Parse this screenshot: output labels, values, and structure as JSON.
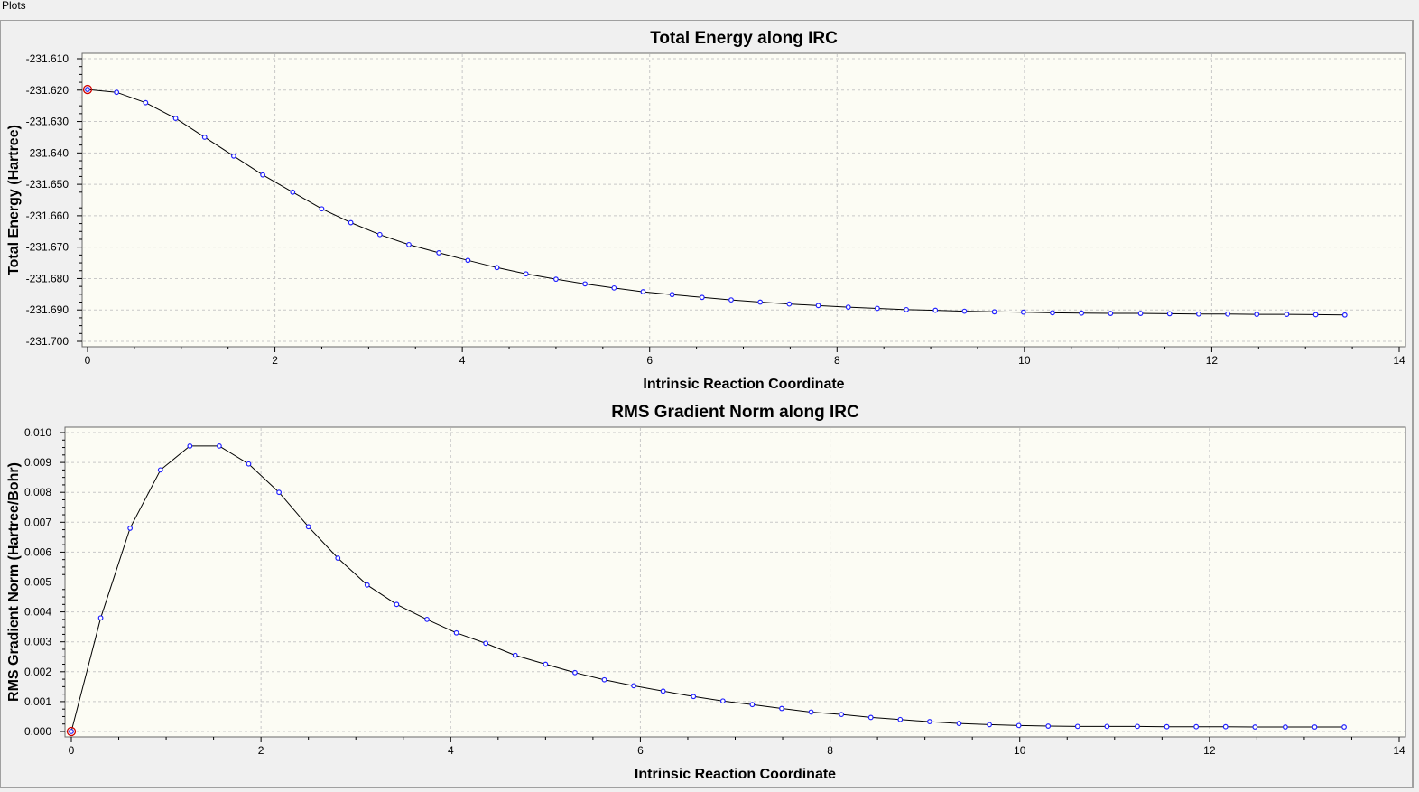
{
  "window": {
    "label": "Plots"
  },
  "chart_data": [
    {
      "type": "line",
      "title": "Total Energy along IRC",
      "xlabel": "Intrinsic Reaction Coordinate",
      "ylabel": "Total Energy (Hartree)",
      "xlim": [
        0,
        14
      ],
      "ylim": [
        -231.7,
        -231.61
      ],
      "xticks": [
        0,
        2,
        4,
        6,
        8,
        10,
        12,
        14
      ],
      "yticks": [
        -231.61,
        -231.62,
        -231.63,
        -231.64,
        -231.65,
        -231.66,
        -231.67,
        -231.68,
        -231.69,
        -231.7
      ],
      "ytick_labels": [
        "-231.610",
        "-231.620",
        "-231.630",
        "-231.640",
        "-231.650",
        "-231.660",
        "-231.670",
        "-231.680",
        "-231.690",
        "-231.700"
      ],
      "grid": true,
      "highlighted_point_index": 0,
      "x": [
        0,
        0.31,
        0.62,
        0.94,
        1.25,
        1.56,
        1.87,
        2.19,
        2.5,
        2.81,
        3.12,
        3.43,
        3.75,
        4.06,
        4.37,
        4.68,
        5.0,
        5.31,
        5.62,
        5.93,
        6.24,
        6.56,
        6.87,
        7.18,
        7.49,
        7.8,
        8.12,
        8.43,
        8.74,
        9.05,
        9.36,
        9.68,
        9.99,
        10.3,
        10.61,
        10.92,
        11.24,
        11.55,
        11.86,
        12.17,
        12.48,
        12.8,
        13.11,
        13.42
      ],
      "y": [
        -231.6198,
        -231.6207,
        -231.624,
        -231.629,
        -231.635,
        -231.641,
        -231.647,
        -231.6525,
        -231.6578,
        -231.6622,
        -231.666,
        -231.6692,
        -231.6718,
        -231.6742,
        -231.6765,
        -231.6785,
        -231.6802,
        -231.6817,
        -231.683,
        -231.6842,
        -231.6851,
        -231.686,
        -231.6868,
        -231.6875,
        -231.6881,
        -231.6886,
        -231.6891,
        -231.6895,
        -231.6899,
        -231.6901,
        -231.6904,
        -231.6906,
        -231.6907,
        -231.6909,
        -231.691,
        -231.6911,
        -231.6911,
        -231.6912,
        -231.6913,
        -231.6913,
        -231.6914,
        -231.6914,
        -231.6915,
        -231.6916
      ]
    },
    {
      "type": "line",
      "title": "RMS Gradient Norm along IRC",
      "xlabel": "Intrinsic Reaction Coordinate",
      "ylabel": "RMS Gradient Norm (Hartree/Bohr)",
      "xlim": [
        0,
        14
      ],
      "ylim": [
        0,
        0.01
      ],
      "xticks": [
        0,
        2,
        4,
        6,
        8,
        10,
        12,
        14
      ],
      "yticks": [
        0.0,
        0.001,
        0.002,
        0.003,
        0.004,
        0.005,
        0.006,
        0.007,
        0.008,
        0.009,
        0.01
      ],
      "ytick_labels": [
        "0.000",
        "0.001",
        "0.002",
        "0.003",
        "0.004",
        "0.005",
        "0.006",
        "0.007",
        "0.008",
        "0.009",
        "0.010"
      ],
      "grid": true,
      "highlighted_point_index": 0,
      "x": [
        0,
        0.31,
        0.62,
        0.94,
        1.25,
        1.56,
        1.87,
        2.19,
        2.5,
        2.81,
        3.12,
        3.43,
        3.75,
        4.06,
        4.37,
        4.68,
        5.0,
        5.31,
        5.62,
        5.93,
        6.24,
        6.56,
        6.87,
        7.18,
        7.49,
        7.8,
        8.12,
        8.43,
        8.74,
        9.05,
        9.36,
        9.68,
        9.99,
        10.3,
        10.61,
        10.92,
        11.24,
        11.55,
        11.86,
        12.17,
        12.48,
        12.8,
        13.11,
        13.42
      ],
      "y": [
        0.0,
        0.0038,
        0.0068,
        0.00875,
        0.00955,
        0.00955,
        0.00895,
        0.008,
        0.00685,
        0.0058,
        0.0049,
        0.00425,
        0.00375,
        0.0033,
        0.00295,
        0.00255,
        0.00225,
        0.00197,
        0.00173,
        0.00153,
        0.00135,
        0.00117,
        0.00102,
        0.0009,
        0.00077,
        0.00065,
        0.00057,
        0.00047,
        0.0004,
        0.00033,
        0.00027,
        0.00023,
        0.0002,
        0.00018,
        0.00017,
        0.00017,
        0.00017,
        0.00016,
        0.00016,
        0.00016,
        0.00015,
        0.00015,
        0.00015,
        0.00015
      ]
    }
  ]
}
